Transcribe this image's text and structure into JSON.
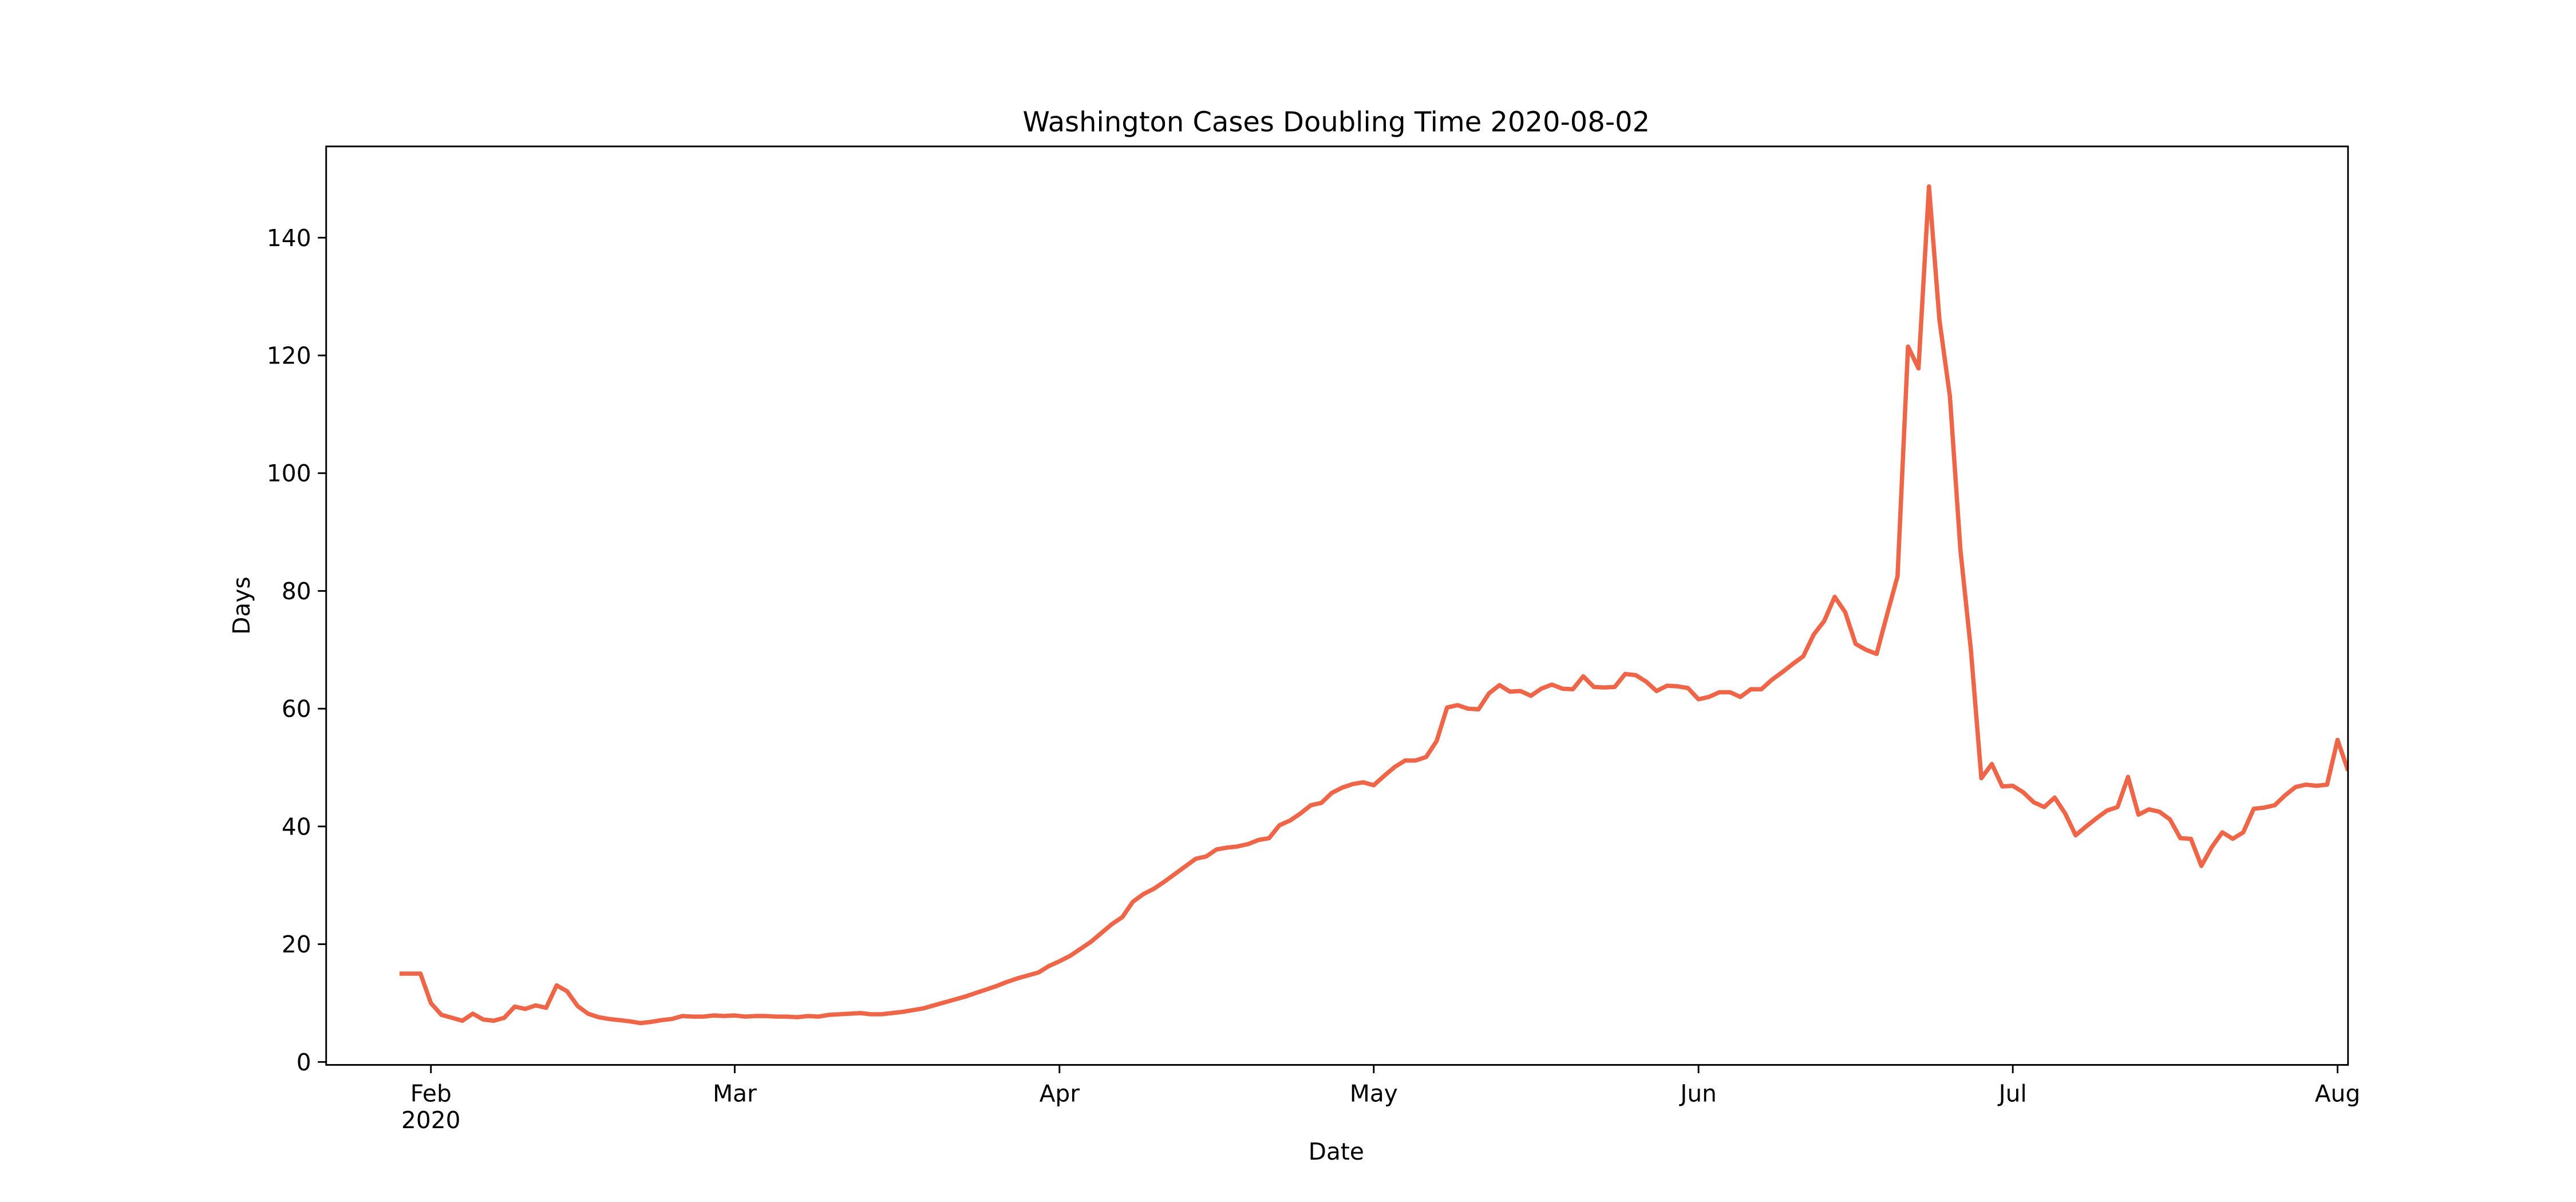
{
  "chart_data": {
    "type": "line",
    "title": "Washington Cases Doubling Time 2020-08-02",
    "xlabel": "Date",
    "ylabel": "Days",
    "x": [
      "2020-01-29",
      "2020-01-30",
      "2020-01-31",
      "2020-02-01",
      "2020-02-02",
      "2020-02-03",
      "2020-02-04",
      "2020-02-05",
      "2020-02-06",
      "2020-02-07",
      "2020-02-08",
      "2020-02-09",
      "2020-02-10",
      "2020-02-11",
      "2020-02-12",
      "2020-02-13",
      "2020-02-14",
      "2020-02-15",
      "2020-02-16",
      "2020-02-17",
      "2020-02-18",
      "2020-02-19",
      "2020-02-20",
      "2020-02-21",
      "2020-02-22",
      "2020-02-23",
      "2020-02-24",
      "2020-02-25",
      "2020-02-26",
      "2020-02-27",
      "2020-02-28",
      "2020-02-29",
      "2020-03-01",
      "2020-03-02",
      "2020-03-03",
      "2020-03-04",
      "2020-03-05",
      "2020-03-06",
      "2020-03-07",
      "2020-03-08",
      "2020-03-09",
      "2020-03-10",
      "2020-03-11",
      "2020-03-12",
      "2020-03-13",
      "2020-03-14",
      "2020-03-15",
      "2020-03-16",
      "2020-03-17",
      "2020-03-18",
      "2020-03-19",
      "2020-03-20",
      "2020-03-21",
      "2020-03-22",
      "2020-03-23",
      "2020-03-24",
      "2020-03-25",
      "2020-03-26",
      "2020-03-27",
      "2020-03-28",
      "2020-03-29",
      "2020-03-30",
      "2020-03-31",
      "2020-04-01",
      "2020-04-02",
      "2020-04-03",
      "2020-04-04",
      "2020-04-05",
      "2020-04-06",
      "2020-04-07",
      "2020-04-08",
      "2020-04-09",
      "2020-04-10",
      "2020-04-11",
      "2020-04-12",
      "2020-04-13",
      "2020-04-14",
      "2020-04-15",
      "2020-04-16",
      "2020-04-17",
      "2020-04-18",
      "2020-04-19",
      "2020-04-20",
      "2020-04-21",
      "2020-04-22",
      "2020-04-23",
      "2020-04-24",
      "2020-04-25",
      "2020-04-26",
      "2020-04-27",
      "2020-04-28",
      "2020-04-29",
      "2020-04-30",
      "2020-05-01",
      "2020-05-02",
      "2020-05-03",
      "2020-05-04",
      "2020-05-05",
      "2020-05-06",
      "2020-05-07",
      "2020-05-08",
      "2020-05-09",
      "2020-05-10",
      "2020-05-11",
      "2020-05-12",
      "2020-05-13",
      "2020-05-14",
      "2020-05-15",
      "2020-05-16",
      "2020-05-17",
      "2020-05-18",
      "2020-05-19",
      "2020-05-20",
      "2020-05-21",
      "2020-05-22",
      "2020-05-23",
      "2020-05-24",
      "2020-05-25",
      "2020-05-26",
      "2020-05-27",
      "2020-05-28",
      "2020-05-29",
      "2020-05-30",
      "2020-05-31",
      "2020-06-01",
      "2020-06-02",
      "2020-06-03",
      "2020-06-04",
      "2020-06-05",
      "2020-06-06",
      "2020-06-07",
      "2020-06-08",
      "2020-06-09",
      "2020-06-10",
      "2020-06-11",
      "2020-06-12",
      "2020-06-13",
      "2020-06-14",
      "2020-06-15",
      "2020-06-16",
      "2020-06-17",
      "2020-06-18",
      "2020-06-19",
      "2020-06-20",
      "2020-06-21",
      "2020-06-22",
      "2020-06-23",
      "2020-06-24",
      "2020-06-25",
      "2020-06-26",
      "2020-06-27",
      "2020-06-28",
      "2020-06-29",
      "2020-06-30",
      "2020-07-01",
      "2020-07-02",
      "2020-07-03",
      "2020-07-04",
      "2020-07-05",
      "2020-07-06",
      "2020-07-07",
      "2020-07-08",
      "2020-07-09",
      "2020-07-10",
      "2020-07-11",
      "2020-07-12",
      "2020-07-13",
      "2020-07-14",
      "2020-07-15",
      "2020-07-16",
      "2020-07-17",
      "2020-07-18",
      "2020-07-19",
      "2020-07-20",
      "2020-07-21",
      "2020-07-22",
      "2020-07-23",
      "2020-07-24",
      "2020-07-25",
      "2020-07-26",
      "2020-07-27",
      "2020-07-28",
      "2020-07-29",
      "2020-07-30",
      "2020-07-31",
      "2020-08-01",
      "2020-08-02"
    ],
    "series": [
      {
        "name": "Doubling Time",
        "color": "#ee6548",
        "values": [
          15,
          15,
          15,
          10,
          8,
          7.5,
          7,
          8.2,
          7.2,
          7,
          7.5,
          9.4,
          9,
          9.6,
          9.2,
          13,
          12,
          9.5,
          8.2,
          7.6,
          7.3,
          7.1,
          6.9,
          6.6,
          6.8,
          7.1,
          7.3,
          7.8,
          7.7,
          7.7,
          7.9,
          7.8,
          7.9,
          7.7,
          7.8,
          7.8,
          7.7,
          7.7,
          7.6,
          7.8,
          7.7,
          8.0,
          8.1,
          8.2,
          8.3,
          8.1,
          8.1,
          8.3,
          8.5,
          8.8,
          9.1,
          9.6,
          10.1,
          10.6,
          11.1,
          11.7,
          12.3,
          12.9,
          13.6,
          14.2,
          14.7,
          15.2,
          16.3,
          17.1,
          18.0,
          19.2,
          20.4,
          21.9,
          23.4,
          24.6,
          27.2,
          28.5,
          29.4,
          30.6,
          31.9,
          33.2,
          34.5,
          34.9,
          36.1,
          36.4,
          36.6,
          37.0,
          37.7,
          38.0,
          40.2,
          41.0,
          42.2,
          43.6,
          44.0,
          45.7,
          46.6,
          47.2,
          47.5,
          47.0,
          48.6,
          50.1,
          51.2,
          51.2,
          51.8,
          54.5,
          60.2,
          60.6,
          60.0,
          59.9,
          62.6,
          64.0,
          62.9,
          63.0,
          62.2,
          63.4,
          64.1,
          63.4,
          63.3,
          65.5,
          63.7,
          63.6,
          63.7,
          65.9,
          65.7,
          64.6,
          63.0,
          63.9,
          63.8,
          63.5,
          61.6,
          62.0,
          62.8,
          62.8,
          62.0,
          63.3,
          63.3,
          64.9,
          66.2,
          67.6,
          68.9,
          72.6,
          74.9,
          79.0,
          76.4,
          71.0,
          70.0,
          69.3,
          76.0,
          82.5,
          121.5,
          117.8,
          148.7,
          126,
          113,
          87,
          70,
          48.2,
          50.6,
          46.8,
          46.9,
          45.8,
          44.1,
          43.3,
          44.9,
          42.2,
          38.5,
          40.0,
          41.4,
          42.7,
          43.3,
          48.4,
          42.0,
          42.9,
          42.5,
          41.2,
          38.0,
          37.9,
          33.3,
          36.5,
          39.0,
          37.9,
          39.0,
          43.0,
          43.2,
          43.6,
          45.3,
          46.7,
          47.1,
          46.9,
          47.1,
          54.7,
          49.5
        ]
      }
    ],
    "xlim": [
      "2020-01-22",
      "2020-08-02"
    ],
    "xticks": [
      {
        "value": "2020-02-01",
        "label": "Feb\n2020"
      },
      {
        "value": "2020-03-01",
        "label": "Mar"
      },
      {
        "value": "2020-04-01",
        "label": "Apr"
      },
      {
        "value": "2020-05-01",
        "label": "May"
      },
      {
        "value": "2020-06-01",
        "label": "Jun"
      },
      {
        "value": "2020-07-01",
        "label": "Jul"
      },
      {
        "value": "2020-08-01",
        "label": "Aug"
      }
    ],
    "ylim": [
      -0.5,
      155.5
    ],
    "yticks": [
      0,
      20,
      40,
      60,
      80,
      100,
      120,
      140
    ],
    "grid": false
  }
}
